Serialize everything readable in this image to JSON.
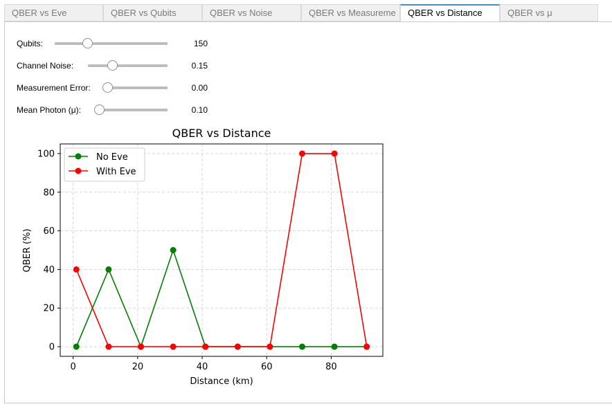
{
  "tabs": [
    {
      "label": "QBER vs Eve",
      "active": false
    },
    {
      "label": "QBER vs Qubits",
      "active": false
    },
    {
      "label": "QBER vs Noise",
      "active": false
    },
    {
      "label": "QBER vs Measureme",
      "active": false
    },
    {
      "label": "QBER vs Distance",
      "active": true
    },
    {
      "label": "QBER vs μ",
      "active": false
    }
  ],
  "controls": {
    "qubits": {
      "label": "Qubits:",
      "value": "150",
      "level": 0.29
    },
    "noise": {
      "label": "Channel Noise:",
      "value": "0.15",
      "level": 0.3
    },
    "measurement": {
      "label": "Measurement Error:",
      "value": "0.00",
      "level": 0.0
    },
    "photon": {
      "label": "Mean Photon (μ):",
      "value": "0.10",
      "level": 0.0
    }
  },
  "colors": {
    "no_eve": "#008000",
    "with_eve": "#ff0000",
    "active_tab_accent": "#3c8fd6",
    "grid": "#cccccc"
  },
  "chart_data": {
    "type": "line",
    "title": "QBER vs Distance",
    "xlabel": "Distance (km)",
    "ylabel": "QBER (%)",
    "x": [
      1,
      11,
      21,
      31,
      41,
      51,
      61,
      71,
      81,
      91
    ],
    "xlim": [
      -4,
      96
    ],
    "ylim": [
      -5,
      105
    ],
    "xticks": [
      0,
      20,
      40,
      60,
      80
    ],
    "yticks": [
      0,
      20,
      40,
      60,
      80,
      100
    ],
    "grid": true,
    "grid_style": "dashed",
    "legend": "top-left",
    "series": [
      {
        "name": "No Eve",
        "color": "#008000",
        "values": [
          0,
          40,
          0,
          50,
          0,
          0,
          0,
          0,
          0,
          0
        ]
      },
      {
        "name": "With Eve",
        "color": "#ff0000",
        "values": [
          40,
          0,
          0,
          0,
          0,
          0,
          0,
          100,
          100,
          0
        ]
      }
    ]
  }
}
